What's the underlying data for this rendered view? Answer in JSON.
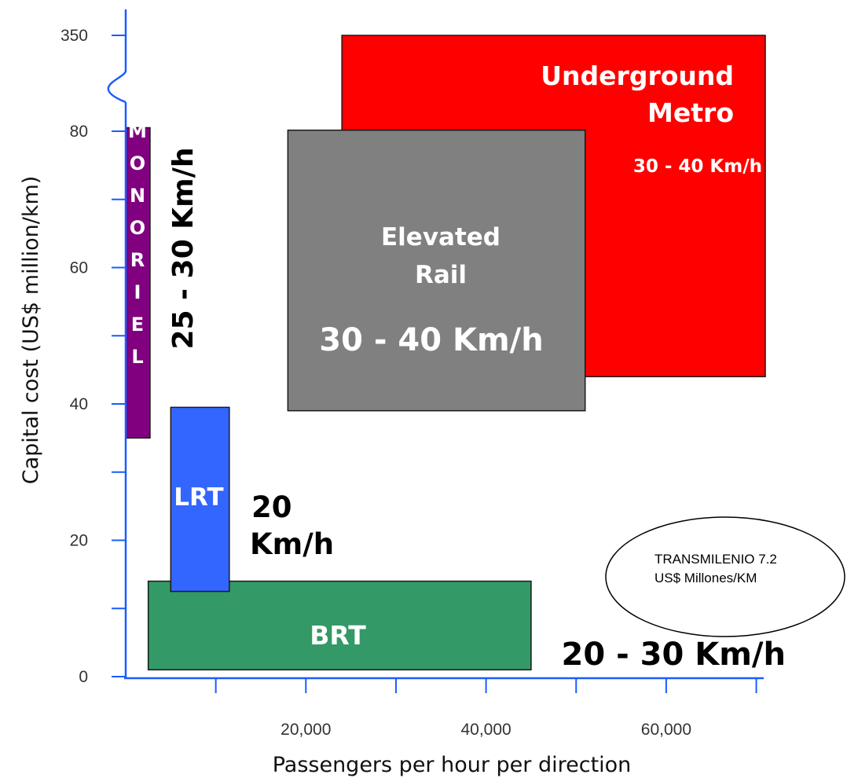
{
  "chart_data": {
    "type": "range-box",
    "xlabel": "Passengers per hour per direction",
    "ylabel": "Capital cost (US$ million/km)",
    "x_ticks": [
      {
        "value": 20000,
        "label": "20,000"
      },
      {
        "value": 40000,
        "label": "40,000"
      },
      {
        "value": 60000,
        "label": "60,000"
      }
    ],
    "x_minor_ticks": [
      10000,
      30000,
      50000,
      70000
    ],
    "xlim": [
      0,
      70000
    ],
    "y_ticks": [
      {
        "value": 0,
        "label": "0"
      },
      {
        "value": 20,
        "label": "20"
      },
      {
        "value": 40,
        "label": "40"
      },
      {
        "value": 60,
        "label": "60"
      },
      {
        "value": 80,
        "label": "80"
      },
      {
        "value": 350,
        "label": "350"
      }
    ],
    "y_minor_ticks": [
      10,
      30,
      50,
      70
    ],
    "y_axis_break": "80 to 350",
    "ylim": [
      0,
      350
    ],
    "systems": [
      {
        "name": "Underground Metro",
        "label_lines": [
          "Underground",
          "Metro"
        ],
        "speed": "30 - 40 Km/h",
        "x_range": [
          24000,
          71000
        ],
        "y_range": [
          44,
          350
        ],
        "color": "#ff0000",
        "label_color": "#ffffff"
      },
      {
        "name": "Elevated Rail",
        "label_lines": [
          "Elevated",
          "Rail"
        ],
        "speed": "30 - 40 Km/h",
        "x_range": [
          18000,
          51000
        ],
        "y_range": [
          39,
          83
        ],
        "color": "#808080",
        "label_color": "#ffffff"
      },
      {
        "name": "MONORIEL",
        "label_lines": [
          "M",
          "O",
          "N",
          "O",
          "R",
          "I",
          "E",
          "L"
        ],
        "speed": "25 - 30 Km/h",
        "x_range": [
          0,
          2700
        ],
        "y_range": [
          35,
          90
        ],
        "color": "#800080",
        "label_color": "#ffffff"
      },
      {
        "name": "LRT",
        "label_lines": [
          "LRT"
        ],
        "speed_lines": [
          "20",
          "Km/h"
        ],
        "x_range": [
          5000,
          11500
        ],
        "y_range": [
          12.5,
          39.5
        ],
        "color": "#3366ff",
        "label_color": "#ffffff"
      },
      {
        "name": "BRT",
        "label_lines": [
          "BRT"
        ],
        "speed": "20 - 30 Km/h",
        "x_range": [
          2500,
          45000
        ],
        "y_range": [
          1,
          14
        ],
        "color": "#339966",
        "label_color": "#ffffff"
      }
    ],
    "annotation": {
      "lines": [
        "TRANSMILENIO 7.2",
        "US$ Millones/KM"
      ]
    }
  }
}
